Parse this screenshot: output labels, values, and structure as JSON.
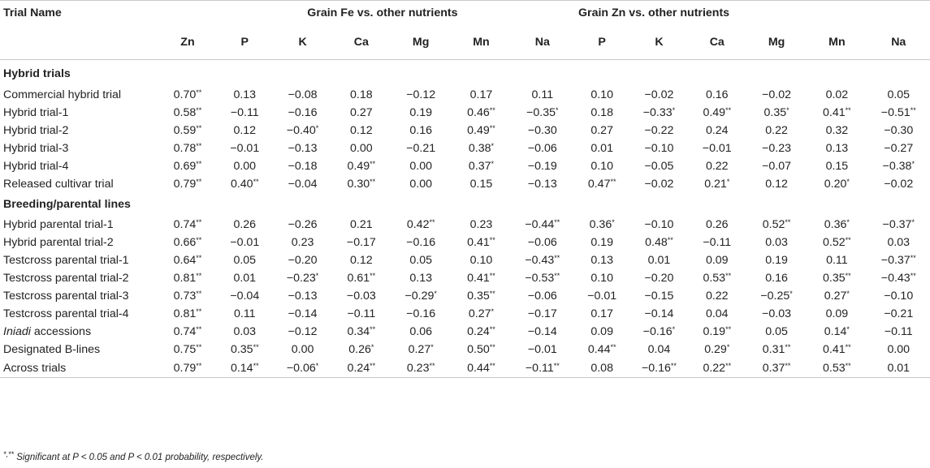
{
  "header": {
    "trial_name": "Trial Name",
    "group_fe": "Grain Fe vs. other nutrients",
    "group_zn": "Grain Zn vs. other nutrients",
    "fe_cols": [
      "Zn",
      "P",
      "K",
      "Ca",
      "Mg",
      "Mn",
      "Na"
    ],
    "zn_cols": [
      "P",
      "K",
      "Ca",
      "Mg",
      "Mn",
      "Na"
    ]
  },
  "sections": [
    {
      "title": "Hybrid trials",
      "rows": [
        {
          "name": "Commercial hybrid trial",
          "values": [
            "0.70**",
            "0.13",
            "−0.08",
            "0.18",
            "−0.12",
            "0.17",
            "0.11",
            "0.10",
            "−0.02",
            "0.16",
            "−0.02",
            "0.02",
            "0.05"
          ]
        },
        {
          "name": "Hybrid trial-1",
          "values": [
            "0.58**",
            "−0.11",
            "−0.16",
            "0.27",
            "0.19",
            "0.46**",
            "−0.35*",
            "0.18",
            "−0.33*",
            "0.49**",
            "0.35*",
            "0.41**",
            "−0.51**"
          ]
        },
        {
          "name": "Hybrid trial-2",
          "values": [
            "0.59**",
            "0.12",
            "−0.40*",
            "0.12",
            "0.16",
            "0.49**",
            "−0.30",
            "0.27",
            "−0.22",
            "0.24",
            "0.22",
            "0.32",
            "−0.30"
          ]
        },
        {
          "name": "Hybrid trial-3",
          "values": [
            "0.78**",
            "−0.01",
            "−0.13",
            "0.00",
            "−0.21",
            "0.38*",
            "−0.06",
            "0.01",
            "−0.10",
            "−0.01",
            "−0.23",
            "0.13",
            "−0.27"
          ]
        },
        {
          "name": "Hybrid trial-4",
          "values": [
            "0.69**",
            "0.00",
            "−0.18",
            "0.49**",
            "0.00",
            "0.37*",
            "−0.19",
            "0.10",
            "−0.05",
            "0.22",
            "−0.07",
            "0.15",
            "−0.38*"
          ]
        },
        {
          "name": "Released cultivar trial",
          "values": [
            "0.79**",
            "0.40**",
            "−0.04",
            "0.30**",
            "0.00",
            "0.15",
            "−0.13",
            "0.47**",
            "−0.02",
            "0.21*",
            "0.12",
            "0.20*",
            "−0.02"
          ]
        }
      ]
    },
    {
      "title": "Breeding/parental lines",
      "rows": [
        {
          "name": "Hybrid parental trial-1",
          "values": [
            "0.74**",
            "0.26",
            "−0.26",
            "0.21",
            "0.42**",
            "0.23",
            "−0.44**",
            "0.36*",
            "−0.10",
            "0.26",
            "0.52**",
            "0.36*",
            "−0.37*"
          ]
        },
        {
          "name": "Hybrid parental trial-2",
          "values": [
            "0.66**",
            "−0.01",
            "0.23",
            "−0.17",
            "−0.16",
            "0.41**",
            "−0.06",
            "0.19",
            "0.48**",
            "−0.11",
            "0.03",
            "0.52**",
            "0.03"
          ]
        },
        {
          "name": "Testcross parental trial-1",
          "values": [
            "0.64**",
            "0.05",
            "−0.20",
            "0.12",
            "0.05",
            "0.10",
            "−0.43**",
            "0.13",
            "0.01",
            "0.09",
            "0.19",
            "0.11",
            "−0.37**"
          ]
        },
        {
          "name": "Testcross parental trial-2",
          "values": [
            "0.81**",
            "0.01",
            "−0.23*",
            "0.61**",
            "0.13",
            "0.41**",
            "−0.53**",
            "0.10",
            "−0.20",
            "0.53**",
            "0.16",
            "0.35**",
            "−0.43**"
          ]
        },
        {
          "name": "Testcross parental trial-3",
          "values": [
            "0.73**",
            "−0.04",
            "−0.13",
            "−0.03",
            "−0.29*",
            "0.35**",
            "−0.06",
            "−0.01",
            "−0.15",
            "0.22",
            "−0.25*",
            "0.27*",
            "−0.10"
          ]
        },
        {
          "name": "Testcross parental trial-4",
          "values": [
            "0.81**",
            "0.11",
            "−0.14",
            "−0.11",
            "−0.16",
            "0.27*",
            "−0.17",
            "0.17",
            "−0.14",
            "0.04",
            "−0.03",
            "0.09",
            "−0.21"
          ]
        },
        {
          "name": "Iniadi accessions",
          "name_italic_part": "Iniadi",
          "name_rest": " accessions",
          "values": [
            "0.74**",
            "0.03",
            "−0.12",
            "0.34**",
            "0.06",
            "0.24**",
            "−0.14",
            "0.09",
            "−0.16*",
            "0.19**",
            "0.05",
            "0.14*",
            "−0.11"
          ]
        },
        {
          "name": "Designated B-lines",
          "values": [
            "0.75**",
            "0.35**",
            "0.00",
            "0.26*",
            "0.27*",
            "0.50**",
            "−0.01",
            "0.44**",
            "0.04",
            "0.29*",
            "0.31**",
            "0.41**",
            "0.00"
          ]
        },
        {
          "name": "Across trials",
          "values": [
            "0.79**",
            "0.14**",
            "−0.06*",
            "0.24**",
            "0.23**",
            "0.44**",
            "−0.11**",
            "0.08",
            "−0.16**",
            "0.22**",
            "0.37**",
            "0.53**",
            "0.01"
          ]
        }
      ]
    }
  ],
  "footnote": "*,** Significant at P < 0.05 and P < 0.01 probability, respectively."
}
